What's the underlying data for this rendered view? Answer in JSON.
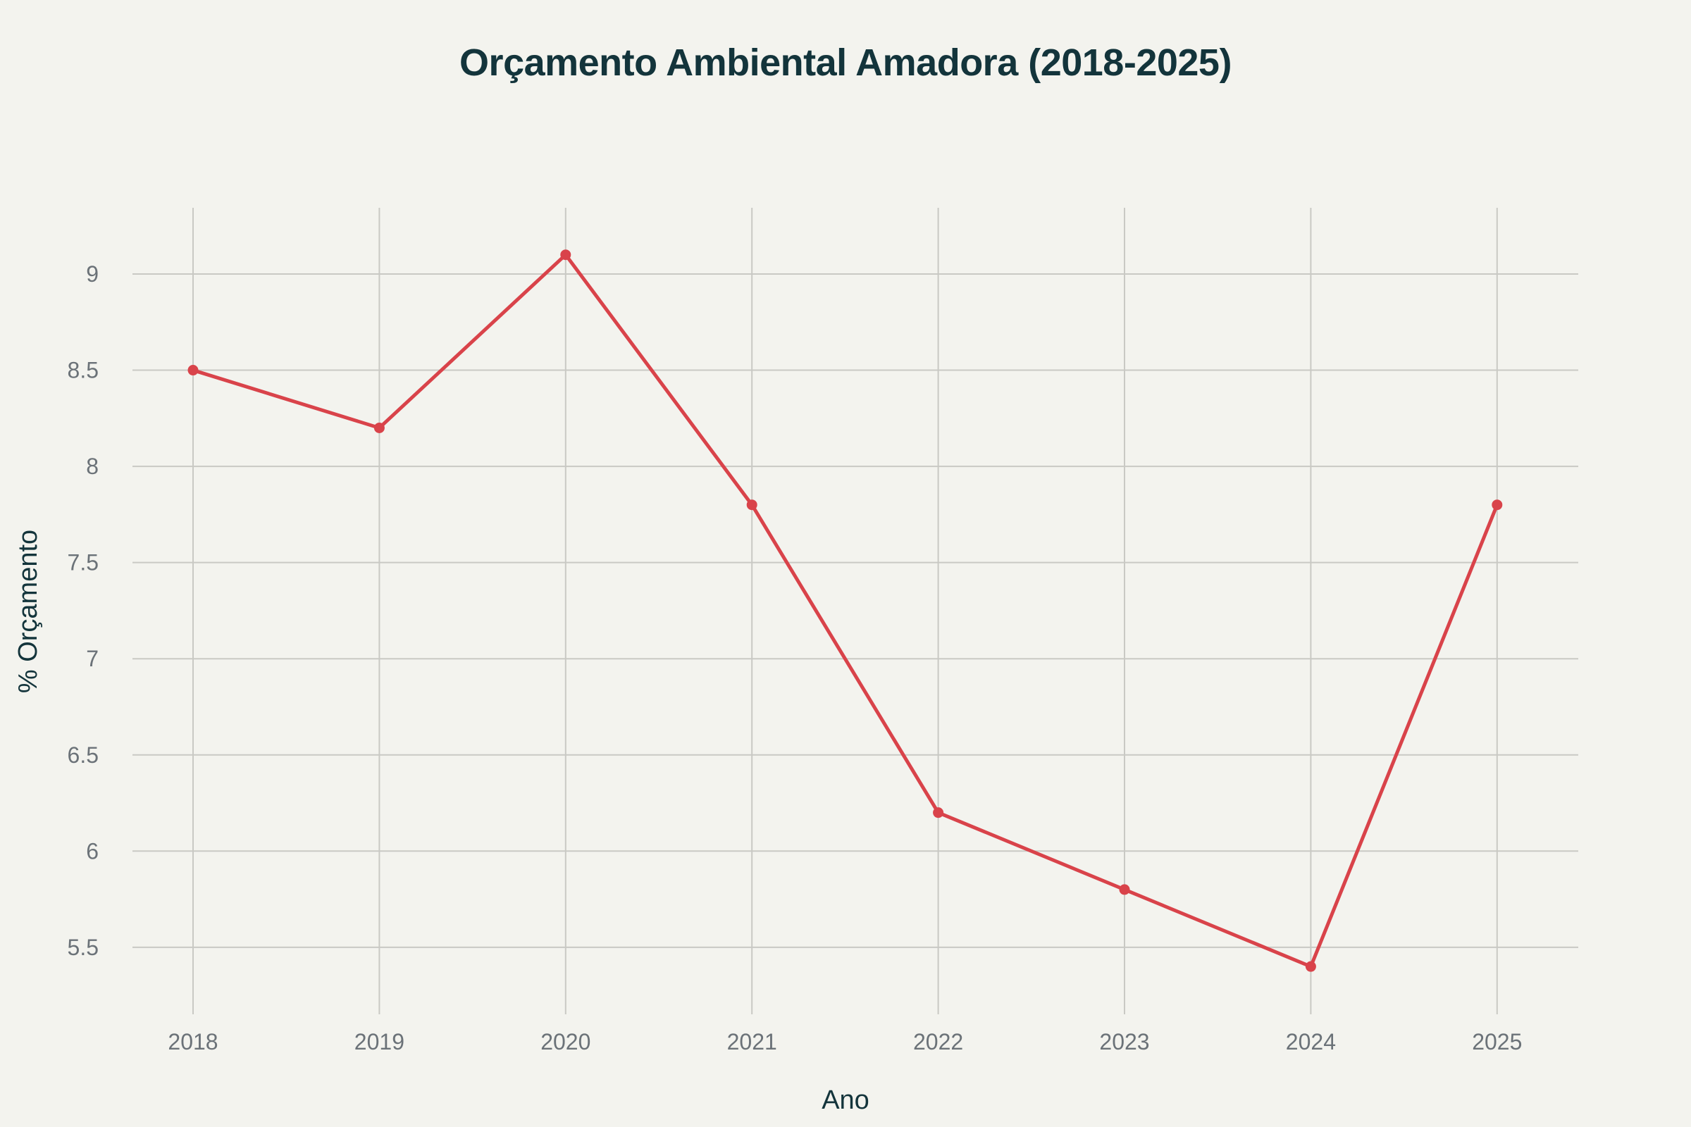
{
  "chart_data": {
    "type": "line",
    "title": "Orçamento Ambiental Amadora (2018-2025)",
    "xlabel": "Ano",
    "ylabel": "% Orçamento",
    "categories": [
      "2018",
      "2019",
      "2020",
      "2021",
      "2022",
      "2023",
      "2024",
      "2025"
    ],
    "series": [
      {
        "name": "% Orçamento",
        "color": "#d9434a",
        "values": [
          8.5,
          8.2,
          9.1,
          7.8,
          6.2,
          5.8,
          5.4,
          7.8
        ]
      }
    ],
    "y_ticks": [
      "5.5",
      "6",
      "6.5",
      "7",
      "7.5",
      "8",
      "8.5",
      "9"
    ],
    "ylim": [
      5.15,
      9.35
    ],
    "grid": true,
    "legend": "none",
    "background": "#f3f3ee"
  }
}
